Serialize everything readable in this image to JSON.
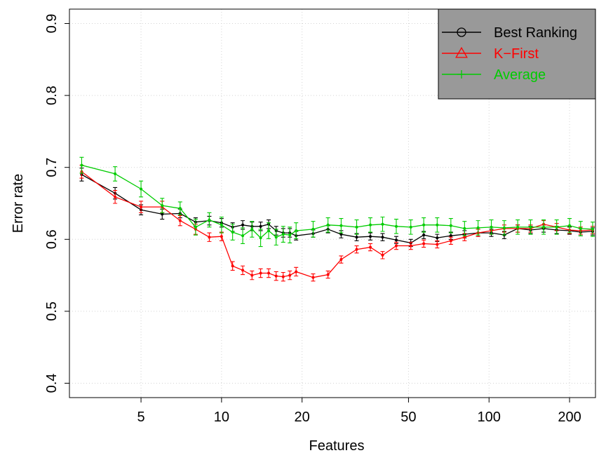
{
  "chart_data": {
    "type": "line",
    "title": "",
    "xlabel": "Features",
    "ylabel": "Error rate",
    "x_scale": "log",
    "xlim": [
      2.7,
      250
    ],
    "ylim": [
      0.38,
      0.92
    ],
    "x_ticks": [
      5,
      10,
      20,
      50,
      100,
      200
    ],
    "x_tick_labels": [
      "5",
      "10",
      "20",
      "50",
      "100",
      "200"
    ],
    "y_ticks": [
      0.4,
      0.5,
      0.6,
      0.7,
      0.8,
      0.9
    ],
    "y_tick_labels": [
      "0.4",
      "0.5",
      "0.6",
      "0.7",
      "0.8",
      "0.9"
    ],
    "grid": true,
    "legend_position": "top-right",
    "legend_background": "#999999",
    "series": [
      {
        "name": "Best Ranking",
        "color": "#000000",
        "marker": "circle",
        "points": [
          [
            3,
            0.69,
            0.009
          ],
          [
            4,
            0.664,
            0.008
          ],
          [
            5,
            0.641,
            0.007
          ],
          [
            6,
            0.635,
            0.007
          ],
          [
            7,
            0.636,
            0.006
          ],
          [
            8,
            0.624,
            0.006
          ],
          [
            9,
            0.626,
            0.006
          ],
          [
            10,
            0.623,
            0.006
          ],
          [
            11,
            0.617,
            0.006
          ],
          [
            12,
            0.62,
            0.006
          ],
          [
            13,
            0.618,
            0.006
          ],
          [
            14,
            0.618,
            0.006
          ],
          [
            15,
            0.621,
            0.006
          ],
          [
            16,
            0.612,
            0.006
          ],
          [
            17,
            0.609,
            0.006
          ],
          [
            18,
            0.609,
            0.006
          ],
          [
            19,
            0.605,
            0.006
          ],
          [
            22,
            0.608,
            0.005
          ],
          [
            25,
            0.614,
            0.005
          ],
          [
            28,
            0.607,
            0.005
          ],
          [
            32,
            0.603,
            0.005
          ],
          [
            36,
            0.604,
            0.005
          ],
          [
            40,
            0.603,
            0.005
          ],
          [
            45,
            0.599,
            0.005
          ],
          [
            51,
            0.595,
            0.005
          ],
          [
            57,
            0.606,
            0.005
          ],
          [
            64,
            0.602,
            0.005
          ],
          [
            72,
            0.605,
            0.005
          ],
          [
            81,
            0.607,
            0.005
          ],
          [
            91,
            0.609,
            0.005
          ],
          [
            102,
            0.609,
            0.005
          ],
          [
            114,
            0.606,
            0.005
          ],
          [
            128,
            0.615,
            0.005
          ],
          [
            143,
            0.613,
            0.005
          ],
          [
            160,
            0.615,
            0.005
          ],
          [
            179,
            0.613,
            0.005
          ],
          [
            200,
            0.612,
            0.005
          ],
          [
            220,
            0.61,
            0.005
          ],
          [
            244,
            0.611,
            0.005
          ]
        ]
      },
      {
        "name": "K−First",
        "color": "#ff0000",
        "marker": "triangle",
        "points": [
          [
            3,
            0.694,
            0.009
          ],
          [
            4,
            0.659,
            0.009
          ],
          [
            5,
            0.645,
            0.008
          ],
          [
            6,
            0.645,
            0.008
          ],
          [
            7,
            0.626,
            0.007
          ],
          [
            8,
            0.614,
            0.007
          ],
          [
            9,
            0.603,
            0.006
          ],
          [
            10,
            0.604,
            0.006
          ],
          [
            11,
            0.563,
            0.006
          ],
          [
            12,
            0.557,
            0.006
          ],
          [
            13,
            0.55,
            0.006
          ],
          [
            14,
            0.553,
            0.006
          ],
          [
            15,
            0.553,
            0.006
          ],
          [
            16,
            0.549,
            0.006
          ],
          [
            17,
            0.548,
            0.006
          ],
          [
            18,
            0.55,
            0.006
          ],
          [
            19,
            0.555,
            0.006
          ],
          [
            22,
            0.547,
            0.005
          ],
          [
            25,
            0.551,
            0.005
          ],
          [
            28,
            0.572,
            0.005
          ],
          [
            32,
            0.586,
            0.005
          ],
          [
            36,
            0.589,
            0.005
          ],
          [
            40,
            0.578,
            0.005
          ],
          [
            45,
            0.591,
            0.005
          ],
          [
            51,
            0.591,
            0.005
          ],
          [
            57,
            0.594,
            0.005
          ],
          [
            64,
            0.593,
            0.005
          ],
          [
            72,
            0.598,
            0.005
          ],
          [
            81,
            0.603,
            0.005
          ],
          [
            91,
            0.609,
            0.005
          ],
          [
            102,
            0.612,
            0.005
          ],
          [
            114,
            0.615,
            0.005
          ],
          [
            128,
            0.615,
            0.005
          ],
          [
            143,
            0.615,
            0.005
          ],
          [
            160,
            0.621,
            0.005
          ],
          [
            179,
            0.617,
            0.005
          ],
          [
            200,
            0.613,
            0.005
          ],
          [
            220,
            0.612,
            0.005
          ],
          [
            244,
            0.613,
            0.005
          ]
        ]
      },
      {
        "name": "Average",
        "color": "#00cc00",
        "marker": "plus",
        "points": [
          [
            3,
            0.703,
            0.011
          ],
          [
            4,
            0.691,
            0.01
          ],
          [
            5,
            0.67,
            0.011
          ],
          [
            6,
            0.647,
            0.01
          ],
          [
            7,
            0.643,
            0.009
          ],
          [
            8,
            0.617,
            0.011
          ],
          [
            9,
            0.627,
            0.01
          ],
          [
            10,
            0.62,
            0.011
          ],
          [
            11,
            0.61,
            0.011
          ],
          [
            12,
            0.605,
            0.011
          ],
          [
            13,
            0.614,
            0.011
          ],
          [
            14,
            0.602,
            0.012
          ],
          [
            15,
            0.612,
            0.011
          ],
          [
            16,
            0.603,
            0.011
          ],
          [
            17,
            0.607,
            0.011
          ],
          [
            18,
            0.606,
            0.011
          ],
          [
            19,
            0.612,
            0.011
          ],
          [
            22,
            0.614,
            0.011
          ],
          [
            25,
            0.62,
            0.01
          ],
          [
            28,
            0.619,
            0.01
          ],
          [
            32,
            0.617,
            0.01
          ],
          [
            36,
            0.62,
            0.01
          ],
          [
            40,
            0.621,
            0.01
          ],
          [
            45,
            0.618,
            0.01
          ],
          [
            51,
            0.617,
            0.01
          ],
          [
            57,
            0.62,
            0.01
          ],
          [
            64,
            0.62,
            0.01
          ],
          [
            72,
            0.619,
            0.01
          ],
          [
            81,
            0.615,
            0.01
          ],
          [
            91,
            0.616,
            0.01
          ],
          [
            102,
            0.617,
            0.01
          ],
          [
            114,
            0.616,
            0.01
          ],
          [
            128,
            0.617,
            0.01
          ],
          [
            143,
            0.617,
            0.01
          ],
          [
            160,
            0.617,
            0.01
          ],
          [
            179,
            0.617,
            0.01
          ],
          [
            200,
            0.619,
            0.01
          ],
          [
            220,
            0.615,
            0.01
          ],
          [
            244,
            0.614,
            0.01
          ]
        ]
      }
    ]
  }
}
